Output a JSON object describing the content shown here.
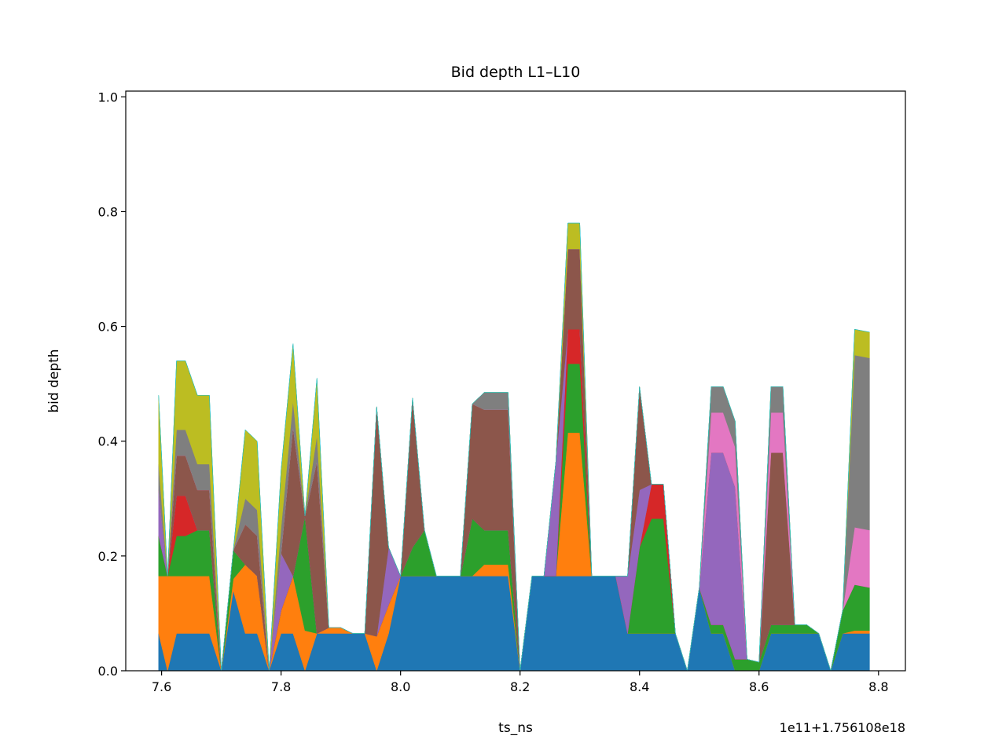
{
  "chart_data": {
    "type": "area",
    "stacked": true,
    "title": "Bid depth L1–L10",
    "xlabel": "ts_ns",
    "ylabel": "bid depth",
    "x_offset_label": "1e11+1.756108e18",
    "xlim": [
      7.54,
      8.845
    ],
    "ylim": [
      0.0,
      1.01
    ],
    "x_ticks": [
      7.6,
      7.8,
      8.0,
      8.2,
      8.4,
      8.6,
      8.8
    ],
    "x_tick_labels": [
      "7.6",
      "7.8",
      "8.0",
      "8.2",
      "8.4",
      "8.6",
      "8.8"
    ],
    "y_ticks": [
      0.0,
      0.2,
      0.4,
      0.6,
      0.8,
      1.0
    ],
    "y_tick_labels": [
      "0.0",
      "0.2",
      "0.4",
      "0.6",
      "0.8",
      "1.0"
    ],
    "grid": false,
    "legend": "none",
    "colors": [
      "#1f77b4",
      "#ff7f0e",
      "#2ca02c",
      "#d62728",
      "#9467bd",
      "#8c564b",
      "#e377c2",
      "#7f7f7f",
      "#bcbd22",
      "#17becf"
    ],
    "x": [
      7.595,
      7.61,
      7.625,
      7.64,
      7.66,
      7.68,
      7.7,
      7.72,
      7.74,
      7.76,
      7.78,
      7.8,
      7.82,
      7.84,
      7.86,
      7.88,
      7.9,
      7.92,
      7.94,
      7.96,
      7.98,
      8.0,
      8.02,
      8.04,
      8.06,
      8.08,
      8.1,
      8.12,
      8.14,
      8.16,
      8.18,
      8.2,
      8.22,
      8.24,
      8.26,
      8.28,
      8.3,
      8.32,
      8.34,
      8.36,
      8.38,
      8.4,
      8.42,
      8.44,
      8.46,
      8.48,
      8.5,
      8.52,
      8.54,
      8.56,
      8.58,
      8.6,
      8.62,
      8.64,
      8.66,
      8.68,
      8.7,
      8.72,
      8.74,
      8.76,
      8.785
    ],
    "series": [
      {
        "values": [
          0.065,
          0.0,
          0.065,
          0.065,
          0.065,
          0.065,
          0.0,
          0.14,
          0.065,
          0.065,
          0.0,
          0.065,
          0.065,
          0.0,
          0.065,
          0.065,
          0.065,
          0.065,
          0.065,
          0.0,
          0.065,
          0.165,
          0.165,
          0.165,
          0.165,
          0.165,
          0.165,
          0.165,
          0.165,
          0.165,
          0.165,
          0.0,
          0.165,
          0.165,
          0.165,
          0.165,
          0.165,
          0.165,
          0.165,
          0.165,
          0.065,
          0.065,
          0.065,
          0.065,
          0.065,
          0.0,
          0.145,
          0.065,
          0.065,
          0.0,
          0.0,
          0.0,
          0.065,
          0.065,
          0.065,
          0.065,
          0.065,
          0.0,
          0.065,
          0.065,
          0.065
        ]
      },
      {
        "values": [
          0.1,
          0.165,
          0.1,
          0.1,
          0.1,
          0.1,
          0.0,
          0.02,
          0.12,
          0.1,
          0.0,
          0.04,
          0.1,
          0.07,
          0.0,
          0.01,
          0.01,
          0.0,
          0.0,
          0.06,
          0.05,
          0.0,
          0.0,
          0.0,
          0.0,
          0.0,
          0.0,
          0.0,
          0.02,
          0.02,
          0.02,
          0.0,
          0.0,
          0.0,
          0.0,
          0.25,
          0.25,
          0.0,
          0.0,
          0.0,
          0.0,
          0.0,
          0.0,
          0.0,
          0.0,
          0.0,
          0.0,
          0.0,
          0.0,
          0.0,
          0.0,
          0.0,
          0.0,
          0.0,
          0.0,
          0.0,
          0.0,
          0.0,
          0.0,
          0.005,
          0.005
        ]
      },
      {
        "values": [
          0.07,
          0.0,
          0.07,
          0.07,
          0.08,
          0.08,
          0.0,
          0.05,
          0.0,
          0.0,
          0.0,
          0.0,
          0.0,
          0.2,
          0.0,
          0.0,
          0.0,
          0.0,
          0.0,
          0.0,
          0.0,
          0.0,
          0.05,
          0.08,
          0.0,
          0.0,
          0.0,
          0.1,
          0.06,
          0.06,
          0.06,
          0.0,
          0.0,
          0.0,
          0.0,
          0.12,
          0.12,
          0.0,
          0.0,
          0.0,
          0.0,
          0.15,
          0.2,
          0.2,
          0.0,
          0.0,
          0.0,
          0.015,
          0.015,
          0.02,
          0.02,
          0.015,
          0.015,
          0.015,
          0.015,
          0.015,
          0.0,
          0.0,
          0.04,
          0.08,
          0.075
        ]
      },
      {
        "values": [
          0.0,
          0.0,
          0.07,
          0.07,
          0.0,
          0.0,
          0.0,
          0.0,
          0.0,
          0.0,
          0.0,
          0.0,
          0.0,
          0.0,
          0.0,
          0.0,
          0.0,
          0.0,
          0.0,
          0.0,
          0.0,
          0.0,
          0.0,
          0.0,
          0.0,
          0.0,
          0.0,
          0.0,
          0.0,
          0.0,
          0.0,
          0.0,
          0.0,
          0.0,
          0.0,
          0.06,
          0.06,
          0.0,
          0.0,
          0.0,
          0.0,
          0.0,
          0.06,
          0.06,
          0.0,
          0.0,
          0.0,
          0.0,
          0.0,
          0.0,
          0.0,
          0.0,
          0.0,
          0.0,
          0.0,
          0.0,
          0.0,
          0.0,
          0.0,
          0.0,
          0.0
        ]
      },
      {
        "values": [
          0.08,
          0.0,
          0.0,
          0.0,
          0.0,
          0.0,
          0.0,
          0.0,
          0.0,
          0.0,
          0.0,
          0.1,
          0.0,
          0.0,
          0.0,
          0.0,
          0.0,
          0.0,
          0.0,
          0.0,
          0.1,
          0.0,
          0.0,
          0.0,
          0.0,
          0.0,
          0.0,
          0.0,
          0.0,
          0.0,
          0.0,
          0.0,
          0.0,
          0.0,
          0.2,
          0.0,
          0.0,
          0.0,
          0.0,
          0.0,
          0.1,
          0.1,
          0.0,
          0.0,
          0.0,
          0.0,
          0.0,
          0.3,
          0.3,
          0.3,
          0.0,
          0.0,
          0.0,
          0.0,
          0.0,
          0.0,
          0.0,
          0.0,
          0.0,
          0.0,
          0.0
        ]
      },
      {
        "values": [
          0.0,
          0.0,
          0.07,
          0.07,
          0.07,
          0.07,
          0.0,
          0.0,
          0.07,
          0.07,
          0.0,
          0.0,
          0.26,
          0.0,
          0.3,
          0.0,
          0.0,
          0.0,
          0.0,
          0.4,
          0.0,
          0.0,
          0.26,
          0.0,
          0.0,
          0.0,
          0.0,
          0.2,
          0.21,
          0.21,
          0.21,
          0.0,
          0.0,
          0.0,
          0.0,
          0.14,
          0.14,
          0.0,
          0.0,
          0.0,
          0.0,
          0.18,
          0.0,
          0.0,
          0.0,
          0.0,
          0.0,
          0.0,
          0.0,
          0.0,
          0.0,
          0.0,
          0.3,
          0.3,
          0.0,
          0.0,
          0.0,
          0.0,
          0.0,
          0.0,
          0.0
        ]
      },
      {
        "values": [
          0.0,
          0.0,
          0.0,
          0.0,
          0.0,
          0.0,
          0.0,
          0.0,
          0.0,
          0.0,
          0.0,
          0.0,
          0.0,
          0.0,
          0.0,
          0.0,
          0.0,
          0.0,
          0.0,
          0.0,
          0.0,
          0.0,
          0.0,
          0.0,
          0.0,
          0.0,
          0.0,
          0.0,
          0.0,
          0.0,
          0.0,
          0.0,
          0.0,
          0.0,
          0.0,
          0.0,
          0.0,
          0.0,
          0.0,
          0.0,
          0.0,
          0.0,
          0.0,
          0.0,
          0.0,
          0.0,
          0.0,
          0.07,
          0.07,
          0.07,
          0.0,
          0.0,
          0.07,
          0.07,
          0.0,
          0.0,
          0.0,
          0.0,
          0.0,
          0.1,
          0.1
        ]
      },
      {
        "values": [
          0.045,
          0.0,
          0.045,
          0.045,
          0.045,
          0.045,
          0.0,
          0.0,
          0.045,
          0.045,
          0.0,
          0.045,
          0.045,
          0.0,
          0.045,
          0.0,
          0.0,
          0.0,
          0.0,
          0.0,
          0.0,
          0.0,
          0.0,
          0.0,
          0.0,
          0.0,
          0.0,
          0.0,
          0.03,
          0.03,
          0.03,
          0.0,
          0.0,
          0.0,
          0.0,
          0.0,
          0.0,
          0.0,
          0.0,
          0.0,
          0.0,
          0.0,
          0.0,
          0.0,
          0.0,
          0.0,
          0.0,
          0.045,
          0.045,
          0.045,
          0.0,
          0.0,
          0.045,
          0.045,
          0.0,
          0.0,
          0.0,
          0.0,
          0.0,
          0.3,
          0.3
        ]
      },
      {
        "values": [
          0.12,
          0.0,
          0.12,
          0.12,
          0.12,
          0.12,
          0.0,
          0.0,
          0.12,
          0.12,
          0.0,
          0.1,
          0.1,
          0.0,
          0.1,
          0.0,
          0.0,
          0.0,
          0.0,
          0.0,
          0.0,
          0.0,
          0.0,
          0.0,
          0.0,
          0.0,
          0.0,
          0.0,
          0.0,
          0.0,
          0.0,
          0.0,
          0.0,
          0.0,
          0.0,
          0.045,
          0.045,
          0.0,
          0.0,
          0.0,
          0.0,
          0.0,
          0.0,
          0.0,
          0.0,
          0.0,
          0.0,
          0.0,
          0.0,
          0.0,
          0.0,
          0.0,
          0.0,
          0.0,
          0.0,
          0.0,
          0.0,
          0.0,
          0.0,
          0.045,
          0.045
        ]
      },
      {
        "values": [
          0.0,
          0.0,
          0.0,
          0.0,
          0.0,
          0.0,
          0.0,
          0.0,
          0.0,
          0.0,
          0.0,
          0.0,
          0.0,
          0.0,
          0.0,
          0.0,
          0.0,
          0.0,
          0.0,
          0.0,
          0.0,
          0.0,
          0.0,
          0.0,
          0.0,
          0.0,
          0.0,
          0.0,
          0.0,
          0.0,
          0.0,
          0.0,
          0.0,
          0.0,
          0.0,
          0.0,
          0.0,
          0.0,
          0.0,
          0.0,
          0.0,
          0.0,
          0.0,
          0.0,
          0.0,
          0.0,
          0.0,
          0.0,
          0.0,
          0.0,
          0.0,
          0.0,
          0.0,
          0.0,
          0.0,
          0.0,
          0.0,
          0.0,
          0.0,
          0.0,
          0.0
        ]
      }
    ]
  }
}
